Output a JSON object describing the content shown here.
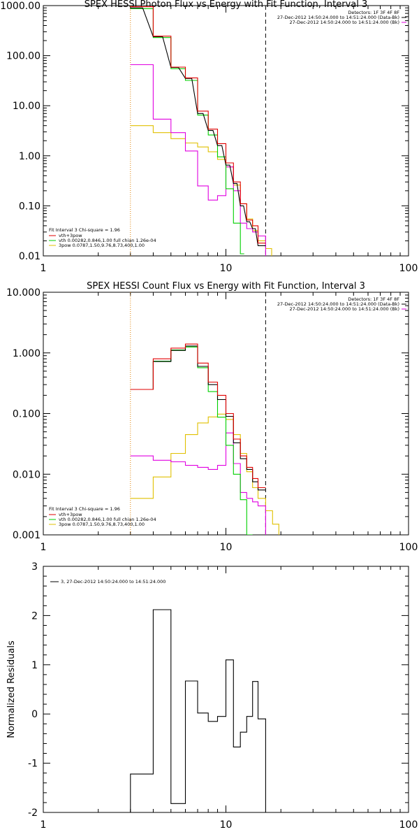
{
  "chart_data": [
    {
      "type": "line",
      "title": "SPEX HESSI Photon Flux vs Energy with Fit Function, Interval 3",
      "xlabel": "",
      "ylabel": "",
      "xscale": "log",
      "yscale": "log",
      "xlim": [
        1,
        100
      ],
      "ylim": [
        0.01,
        1000
      ],
      "xticks": [
        "1",
        "10",
        "100"
      ],
      "yticks": [
        "0.01",
        "0.10",
        "1.00",
        "10.00",
        "100.00",
        "1000.00"
      ],
      "colors": {
        "data": "#000000",
        "total": "#e00000",
        "vth": "#00d000",
        "3pow": "#e0c000",
        "Bk": "#e000e0",
        "fitline": "#e08000"
      },
      "legend_tr": [
        "Detectors: 1F 3F 4F 8F",
        "27-Dec-2012 14:50:24.000 to 14:51:24.000 (Data-Bk)",
        "27-Dec-2012 14:50:24.000 to 14:51:24.000 (Bk)"
      ],
      "legend_bl": {
        "header": "Fit Interval 3   Chi-square = 1.96",
        "items": [
          "vth+3pow",
          "vth 0.00282,0.846,1.00  full chian 1.26e-04",
          "3pow 0.0787,1.50,9.76,8.73,400,1.00"
        ]
      },
      "fit_range": [
        3,
        16.5
      ],
      "series": [
        {
          "name": "Data-Bk",
          "key": "data",
          "x": [
            3,
            3.5,
            4,
            4.5,
            5,
            5.5,
            6,
            6.5,
            7,
            7.5,
            8,
            8.5,
            9,
            9.5,
            10,
            10.5,
            11,
            11.5,
            12,
            12.5,
            13,
            13.5,
            14,
            14.5,
            15,
            15.5,
            16,
            16.5
          ],
          "values": [
            900,
            900,
            240,
            240,
            58,
            58,
            35,
            35,
            7,
            7,
            3.2,
            3.2,
            1.6,
            1.6,
            0.65,
            0.65,
            0.28,
            0.28,
            0.1,
            0.1,
            0.048,
            0.048,
            0.035,
            0.035,
            0.016,
            0.016,
            0.016,
            0.016
          ]
        },
        {
          "name": "vth+3pow",
          "key": "total",
          "x": [
            3,
            4,
            4,
            5,
            5,
            6,
            6,
            7,
            7,
            8,
            8,
            9,
            9,
            10,
            10,
            11,
            11,
            12,
            12,
            13,
            13,
            14,
            14,
            15,
            15,
            16.5
          ],
          "values": [
            950,
            950,
            245,
            245,
            59,
            59,
            36,
            36,
            7.8,
            7.8,
            3.4,
            3.4,
            1.75,
            1.75,
            0.72,
            0.72,
            0.3,
            0.3,
            0.11,
            0.11,
            0.052,
            0.052,
            0.04,
            0.04,
            0.018,
            0.018
          ]
        },
        {
          "name": "vth",
          "key": "vth",
          "x": [
            3,
            4,
            4,
            5,
            5,
            6,
            6,
            7,
            7,
            8,
            8,
            9,
            9,
            10,
            10,
            11,
            11,
            12,
            12,
            12.6
          ],
          "values": [
            870,
            870,
            230,
            230,
            55,
            55,
            32,
            32,
            6.5,
            6.5,
            2.6,
            2.6,
            0.95,
            0.95,
            0.22,
            0.22,
            0.045,
            0.045,
            0.011,
            0.011
          ]
        },
        {
          "name": "3pow",
          "key": "3pow",
          "x": [
            3,
            4,
            4,
            5,
            5,
            6,
            6,
            7,
            7,
            8,
            8,
            9,
            9,
            10,
            10,
            11,
            11,
            12,
            12,
            13,
            13,
            14,
            14,
            15,
            15,
            16.5,
            16.5,
            17.8,
            17.8
          ],
          "values": [
            4,
            4,
            2.9,
            2.9,
            2.2,
            2.2,
            1.8,
            1.8,
            1.5,
            1.5,
            1.2,
            1.2,
            0.85,
            0.85,
            0.6,
            0.6,
            0.26,
            0.26,
            0.11,
            0.11,
            0.055,
            0.055,
            0.032,
            0.032,
            0.02,
            0.02,
            0.014,
            0.014,
            0.01
          ]
        },
        {
          "name": "Bk",
          "key": "Bk",
          "x": [
            3,
            4,
            4,
            5,
            5,
            6,
            6,
            7,
            7,
            8,
            8,
            9,
            9,
            10,
            10,
            11,
            11,
            12,
            12,
            13,
            13,
            14,
            14,
            15,
            15,
            16.5,
            16.5
          ],
          "values": [
            66,
            66,
            5.4,
            5.4,
            2.9,
            2.9,
            1.25,
            1.25,
            0.25,
            0.25,
            0.13,
            0.13,
            0.16,
            0.16,
            0.6,
            0.6,
            0.2,
            0.2,
            0.045,
            0.045,
            0.035,
            0.035,
            0.03,
            0.03,
            0.025,
            0.025,
            0.01
          ]
        }
      ]
    },
    {
      "type": "line",
      "title": "SPEX HESSI Count Flux vs Energy with Fit Function, Interval 3",
      "xlabel": "",
      "ylabel": "",
      "xscale": "log",
      "yscale": "log",
      "xlim": [
        1,
        100
      ],
      "ylim": [
        0.001,
        10
      ],
      "xticks": [
        "1",
        "10",
        "100"
      ],
      "yticks": [
        "0.001",
        "0.010",
        "0.100",
        "1.000",
        "10.000"
      ],
      "colors": {
        "data": "#000000",
        "total": "#e00000",
        "vth": "#00d000",
        "3pow": "#e0c000",
        "Bk": "#e000e0",
        "fitline": "#e08000"
      },
      "legend_tr": [
        "Detectors: 1F 3F 4F 8F",
        "27-Dec-2012 14:50:24.000 to 14:51:24.000 (Data-Bk)",
        "27-Dec-2012 14:50:24.000 to 14:51:24.000 (Bk)"
      ],
      "legend_bl": {
        "header": "Fit Interval 3   Chi-square = 1.96",
        "items": [
          "vth+3pow",
          "vth 0.00282,0.846,1.00  full chian 1.26e-04",
          "3pow 0.0787,1.50,9.76,8.73,400,1.00"
        ]
      },
      "fit_range": [
        3,
        16.5
      ],
      "series": [
        {
          "name": "Data-Bk",
          "key": "data",
          "x": [
            3,
            4,
            4,
            5,
            5,
            6,
            6,
            7,
            7,
            8,
            8,
            9,
            9,
            10,
            10,
            11,
            11,
            12,
            12,
            13,
            13,
            14,
            14,
            15,
            15,
            16.5
          ],
          "values": [
            0.25,
            0.25,
            0.72,
            0.72,
            1.1,
            1.1,
            1.3,
            1.3,
            0.6,
            0.6,
            0.3,
            0.3,
            0.17,
            0.17,
            0.09,
            0.09,
            0.033,
            0.033,
            0.018,
            0.018,
            0.012,
            0.012,
            0.0075,
            0.0075,
            0.0055,
            0.0055
          ]
        },
        {
          "name": "vth+3pow",
          "key": "total",
          "x": [
            3,
            4,
            4,
            5,
            5,
            6,
            6,
            7,
            7,
            8,
            8,
            9,
            9,
            10,
            10,
            11,
            11,
            12,
            12,
            13,
            13,
            14,
            14,
            15,
            15,
            16.5
          ],
          "values": [
            0.25,
            0.25,
            0.8,
            0.8,
            1.2,
            1.2,
            1.4,
            1.4,
            0.68,
            0.68,
            0.33,
            0.33,
            0.2,
            0.2,
            0.1,
            0.1,
            0.038,
            0.038,
            0.02,
            0.02,
            0.013,
            0.013,
            0.0085,
            0.0085,
            0.006,
            0.006
          ]
        },
        {
          "name": "vth",
          "key": "vth",
          "x": [
            3,
            4,
            4,
            5,
            5,
            6,
            6,
            7,
            7,
            8,
            8,
            9,
            9,
            10,
            10,
            11,
            11,
            12,
            12,
            13,
            13,
            14
          ],
          "values": [
            0.25,
            0.25,
            0.73,
            0.73,
            1.12,
            1.12,
            1.25,
            1.25,
            0.57,
            0.57,
            0.23,
            0.23,
            0.087,
            0.087,
            0.03,
            0.03,
            0.01,
            0.01,
            0.0038,
            0.0038,
            0.001,
            0.001
          ]
        },
        {
          "name": "3pow",
          "key": "3pow",
          "x": [
            3,
            4,
            4,
            5,
            5,
            6,
            6,
            7,
            7,
            8,
            8,
            9,
            9,
            10,
            10,
            11,
            11,
            12,
            12,
            13,
            13,
            14,
            14,
            15,
            15,
            16.5,
            16.5,
            18,
            18,
            19.5,
            19.5
          ],
          "values": [
            0.004,
            0.004,
            0.009,
            0.009,
            0.022,
            0.022,
            0.045,
            0.045,
            0.07,
            0.07,
            0.088,
            0.088,
            0.098,
            0.098,
            0.08,
            0.08,
            0.045,
            0.045,
            0.022,
            0.022,
            0.011,
            0.011,
            0.006,
            0.006,
            0.004,
            0.004,
            0.0025,
            0.0025,
            0.0015,
            0.0015,
            0.001
          ]
        },
        {
          "name": "Bk",
          "key": "Bk",
          "x": [
            3,
            4,
            4,
            5,
            5,
            6,
            6,
            7,
            7,
            8,
            8,
            9,
            9,
            10,
            10,
            11,
            11,
            12,
            12,
            13,
            13,
            14,
            14,
            15,
            15,
            16.5,
            16.5
          ],
          "values": [
            0.02,
            0.02,
            0.017,
            0.017,
            0.016,
            0.016,
            0.014,
            0.014,
            0.013,
            0.013,
            0.012,
            0.012,
            0.014,
            0.014,
            0.048,
            0.048,
            0.015,
            0.015,
            0.005,
            0.005,
            0.004,
            0.004,
            0.0035,
            0.0035,
            0.003,
            0.003,
            0.001
          ]
        }
      ]
    },
    {
      "type": "line",
      "title": "",
      "xlabel": "",
      "ylabel": "Normalized Residuals",
      "xscale": "log",
      "yscale": "linear",
      "xlim": [
        1,
        100
      ],
      "ylim": [
        -2,
        3
      ],
      "xticks": [
        "1",
        "10",
        "100"
      ],
      "yticks": [
        "-2",
        "-1",
        "0",
        "1",
        "2",
        "3"
      ],
      "colors": {
        "data": "#000000"
      },
      "legend": "3, 27-Dec-2012 14:50:24.000 to 14:51:24.000",
      "series": [
        {
          "name": "3, 27-Dec-2012 14:50:24.000 to 14:51:24.000",
          "key": "data",
          "x": [
            3,
            3,
            4,
            4,
            5,
            5,
            6,
            6,
            7,
            7,
            8,
            8,
            9,
            9,
            10,
            10,
            11,
            11,
            12,
            12,
            13,
            13,
            14,
            14,
            15,
            15,
            16.5,
            16.5
          ],
          "values": [
            -2,
            -1.22,
            -1.22,
            2.12,
            2.12,
            -1.82,
            -1.82,
            0.67,
            0.67,
            0.02,
            0.02,
            -0.15,
            -0.15,
            -0.05,
            -0.05,
            1.1,
            1.1,
            -0.67,
            -0.67,
            -0.37,
            -0.37,
            -0.05,
            -0.05,
            0.66,
            0.66,
            -0.1,
            -0.1,
            -2
          ]
        }
      ]
    }
  ]
}
